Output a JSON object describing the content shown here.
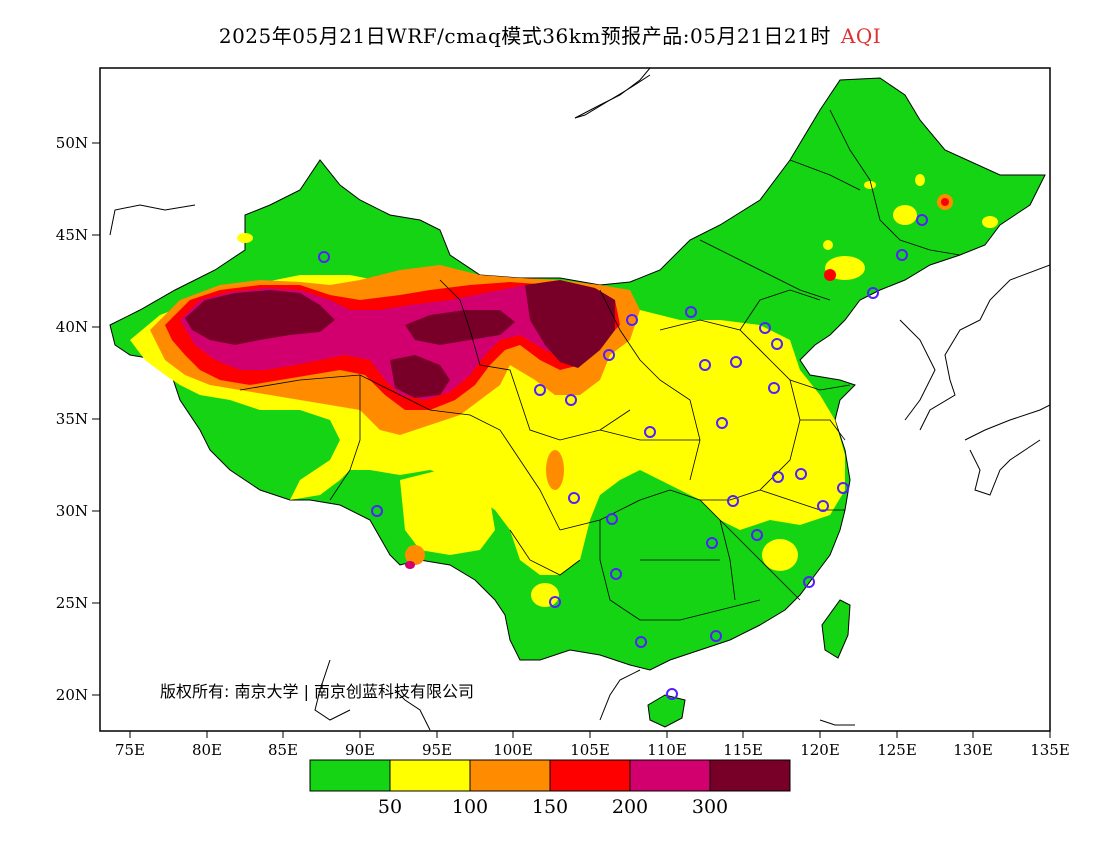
{
  "title": {
    "main": "2025年05月21日WRF/cmaq模式36km预报产品:05月21日21时",
    "variable": "AQI"
  },
  "axes": {
    "lat_labels": [
      "50N",
      "45N",
      "40N",
      "35N",
      "30N",
      "25N",
      "20N"
    ],
    "lon_labels": [
      "75E",
      "80E",
      "85E",
      "90E",
      "95E",
      "100E",
      "105E",
      "110E",
      "115E",
      "120E",
      "125E",
      "130E",
      "135E"
    ]
  },
  "copyright": "版权所有: 南京大学 | 南京创蓝科技有限公司",
  "colorbar": {
    "colors": [
      "#14d414",
      "#ffff00",
      "#ff8c00",
      "#ff0000",
      "#d2006e",
      "#780028"
    ],
    "labels": [
      "50",
      "100",
      "150",
      "200",
      "300"
    ]
  },
  "icons": {
    "station": "station-circle-icon"
  }
}
